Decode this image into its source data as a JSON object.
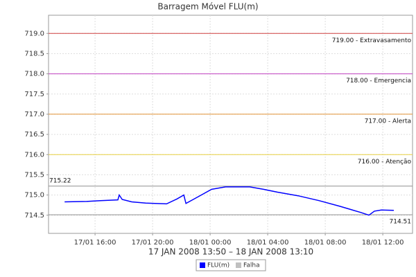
{
  "chart_data": {
    "type": "line",
    "title": "Barragem Móvel FLU(m)",
    "x_label": "17 JAN 2008 13:50 – 18 JAN 2008 13:10",
    "x": [
      "2008-01-17 13:53",
      "2008-01-17 15:25",
      "2008-01-17 16:23",
      "2008-01-17 17:35",
      "2008-01-17 17:41",
      "2008-01-17 17:53",
      "2008-01-17 18:33",
      "2008-01-17 19:31",
      "2008-01-17 20:58",
      "2008-01-17 21:41",
      "2008-01-17 22:10",
      "2008-01-17 22:19",
      "2008-01-17 23:08",
      "2008-01-18 00:06",
      "2008-01-18 01:04",
      "2008-01-18 02:45",
      "2008-01-18 03:43",
      "2008-01-18 04:41",
      "2008-01-18 06:07",
      "2008-01-18 07:34",
      "2008-01-18 09:01",
      "2008-01-18 10:27",
      "2008-01-18 11:02",
      "2008-01-18 11:25",
      "2008-01-18 11:54",
      "2008-01-18 12:46"
    ],
    "series": [
      {
        "name": "FLU(m)",
        "color": "#0000ff",
        "values": [
          714.83,
          714.84,
          714.86,
          714.88,
          715.0,
          714.89,
          714.83,
          714.8,
          714.78,
          714.9,
          715.0,
          714.79,
          714.95,
          715.14,
          715.2,
          715.2,
          715.14,
          715.07,
          714.98,
          714.86,
          714.72,
          714.57,
          714.5,
          714.6,
          714.63,
          714.62
        ]
      },
      {
        "name": "Falha",
        "color": "#c0c0c0",
        "values": [
          null,
          null,
          null,
          null,
          null,
          null,
          null,
          null,
          null,
          null,
          null,
          null,
          null,
          null,
          null,
          null,
          null,
          null,
          null,
          null,
          null,
          null,
          null,
          null,
          null,
          null
        ]
      }
    ],
    "thresholds": [
      {
        "value": 719.0,
        "label": "719.00 - Extravasamento",
        "color": "#d04040",
        "side": "right"
      },
      {
        "value": 718.0,
        "label": "718.00 - Emergencia",
        "color": "#c040c0",
        "side": "right"
      },
      {
        "value": 717.0,
        "label": "717.00 - Alerta",
        "color": "#e09030",
        "side": "right"
      },
      {
        "value": 716.0,
        "label": "716.00 - Atenção",
        "color": "#e8d040",
        "side": "right"
      },
      {
        "value": 715.22,
        "label": "715.22",
        "color": "#909090",
        "side": "left"
      },
      {
        "value": 714.51,
        "label": "714.51",
        "color": "#909090",
        "side": "right"
      }
    ],
    "xlim": [
      "2008-01-17 12:46",
      "2008-01-18 14:04"
    ],
    "xticks": [
      {
        "value": "2008-01-17 16:00",
        "label": "17/01 16:00"
      },
      {
        "value": "2008-01-17 20:00",
        "label": "17/01 20:00"
      },
      {
        "value": "2008-01-18 00:00",
        "label": "18/01 00:00"
      },
      {
        "value": "2008-01-18 04:00",
        "label": "18/01 04:00"
      },
      {
        "value": "2008-01-18 08:00",
        "label": "18/01 08:00"
      },
      {
        "value": "2008-01-18 12:00",
        "label": "18/01 12:00"
      }
    ],
    "ylim": [
      714.05,
      719.45
    ],
    "yticks": [
      714.5,
      {
        "value": 715.0,
        "label": "715.0"
      },
      715.5,
      {
        "value": 716.0,
        "label": "716.0"
      },
      716.5,
      {
        "value": 717.0,
        "label": "717.0"
      },
      717.5,
      {
        "value": 718.0,
        "label": "718.0"
      },
      718.5,
      {
        "value": 719.0,
        "label": "719.0"
      }
    ],
    "grid": true,
    "legend": "bottom"
  }
}
